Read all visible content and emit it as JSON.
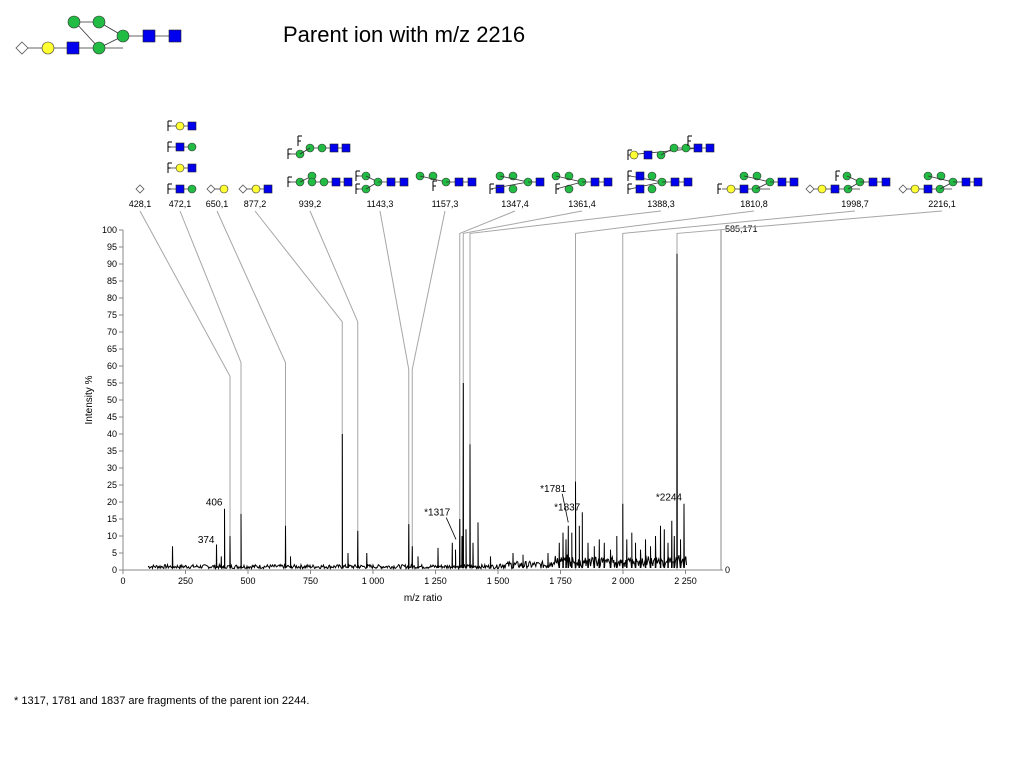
{
  "page": {
    "title": "Parent ion with m/z 2216",
    "footnote": "* 1317, 1781 and 1837 are fragments of the parent ion 2244."
  },
  "colors": {
    "galactose": "#ffff33",
    "mannose": "#22bb44",
    "glcnac": "#0000ee",
    "xylose": "#ffffff",
    "spectrum": "#000000",
    "connector": "#a6a6a6"
  },
  "icons": {
    "circle_yellow": "galactose-circle-icon",
    "circle_green": "mannose-circle-icon",
    "square_blue": "glcnac-square-icon",
    "diamond_white": "xylose-diamond-icon",
    "fucose_mark": "fucose-mark-icon"
  },
  "chart_data": {
    "type": "line",
    "title": "",
    "xlabel": "m/z ratio",
    "ylabel": "Intensity %",
    "xlim": [
      0,
      2400
    ],
    "ylim": [
      0,
      100
    ],
    "grid": false,
    "x_ticks": [
      {
        "value": 0,
        "label": "0"
      },
      {
        "value": 250,
        "label": "250"
      },
      {
        "value": 500,
        "label": "500"
      },
      {
        "value": 750,
        "label": "750"
      },
      {
        "value": 1000,
        "label": "1 000"
      },
      {
        "value": 1250,
        "label": "1 250"
      },
      {
        "value": 1500,
        "label": "1 500"
      },
      {
        "value": 1750,
        "label": "1 750"
      },
      {
        "value": 2000,
        "label": "2 000"
      },
      {
        "value": 2250,
        "label": "2 250"
      }
    ],
    "y_ticks": [
      0,
      5,
      10,
      15,
      20,
      25,
      30,
      35,
      40,
      45,
      50,
      55,
      60,
      65,
      70,
      75,
      80,
      85,
      90,
      95,
      100
    ],
    "right_axis": {
      "top_label": "585,171",
      "bottom_label": "0"
    },
    "peaks": [
      {
        "x": 198,
        "y": 7
      },
      {
        "x": 374,
        "y": 7.5
      },
      {
        "x": 393,
        "y": 4
      },
      {
        "x": 406,
        "y": 18
      },
      {
        "x": 428,
        "y": 10
      },
      {
        "x": 472,
        "y": 16.5
      },
      {
        "x": 650,
        "y": 13
      },
      {
        "x": 670,
        "y": 4
      },
      {
        "x": 877,
        "y": 40
      },
      {
        "x": 900,
        "y": 5
      },
      {
        "x": 939,
        "y": 11.5
      },
      {
        "x": 975,
        "y": 5
      },
      {
        "x": 1143,
        "y": 13.5
      },
      {
        "x": 1157,
        "y": 7
      },
      {
        "x": 1180,
        "y": 4
      },
      {
        "x": 1260,
        "y": 6.5
      },
      {
        "x": 1317,
        "y": 8
      },
      {
        "x": 1330,
        "y": 6
      },
      {
        "x": 1347,
        "y": 15
      },
      {
        "x": 1356,
        "y": 10
      },
      {
        "x": 1361,
        "y": 55
      },
      {
        "x": 1372,
        "y": 12
      },
      {
        "x": 1388,
        "y": 37
      },
      {
        "x": 1400,
        "y": 8
      },
      {
        "x": 1420,
        "y": 14
      },
      {
        "x": 1470,
        "y": 4
      },
      {
        "x": 1560,
        "y": 5
      },
      {
        "x": 1600,
        "y": 4.5
      },
      {
        "x": 1700,
        "y": 5
      },
      {
        "x": 1745,
        "y": 8
      },
      {
        "x": 1760,
        "y": 11
      },
      {
        "x": 1772,
        "y": 9
      },
      {
        "x": 1781,
        "y": 13
      },
      {
        "x": 1795,
        "y": 11
      },
      {
        "x": 1810,
        "y": 26
      },
      {
        "x": 1825,
        "y": 13
      },
      {
        "x": 1837,
        "y": 17
      },
      {
        "x": 1860,
        "y": 8
      },
      {
        "x": 1885,
        "y": 7
      },
      {
        "x": 1905,
        "y": 9
      },
      {
        "x": 1925,
        "y": 8
      },
      {
        "x": 1950,
        "y": 6
      },
      {
        "x": 1975,
        "y": 10
      },
      {
        "x": 1999,
        "y": 19.5
      },
      {
        "x": 2015,
        "y": 9
      },
      {
        "x": 2035,
        "y": 11
      },
      {
        "x": 2050,
        "y": 8
      },
      {
        "x": 2070,
        "y": 6
      },
      {
        "x": 2090,
        "y": 9
      },
      {
        "x": 2110,
        "y": 7
      },
      {
        "x": 2130,
        "y": 10
      },
      {
        "x": 2150,
        "y": 13
      },
      {
        "x": 2165,
        "y": 12
      },
      {
        "x": 2180,
        "y": 8
      },
      {
        "x": 2195,
        "y": 14.5
      },
      {
        "x": 2205,
        "y": 10
      },
      {
        "x": 2216,
        "y": 93
      },
      {
        "x": 2230,
        "y": 9
      },
      {
        "x": 2244,
        "y": 19.5
      }
    ],
    "annotations": [
      {
        "text": "374",
        "x": 374,
        "y": 8
      },
      {
        "text": "406",
        "x": 406,
        "y": 19
      },
      {
        "text": "*1317",
        "x": 1317,
        "y": 16,
        "leader_to": {
          "x": 1332,
          "y": 9
        }
      },
      {
        "text": "*1781",
        "x": 1781,
        "y": 23,
        "leader_to": {
          "x": 1781,
          "y": 14
        }
      },
      {
        "text": "*1837",
        "x": 1837,
        "y": 17.5
      },
      {
        "text": "*2244",
        "x": 2244,
        "y": 20.5
      }
    ],
    "structure_labels": [
      {
        "label": "428,1",
        "target": 428,
        "elbow": 57
      },
      {
        "label": "472,1",
        "target": 472,
        "elbow": 61
      },
      {
        "label": "650,1",
        "target": 650,
        "elbow": 61
      },
      {
        "label": "877,2",
        "target": 877,
        "elbow": 73
      },
      {
        "label": "939,2",
        "target": 939,
        "elbow": 73
      },
      {
        "label": "1143,3",
        "target": 1143,
        "elbow": 59
      },
      {
        "label": "1157,3",
        "target": 1157,
        "elbow": 59
      },
      {
        "label": "1347,4",
        "target": 1347,
        "elbow": 99
      },
      {
        "label": "1361,4",
        "target": 1361,
        "elbow": 99
      },
      {
        "label": "1388,3",
        "target": 1388,
        "elbow": 99
      },
      {
        "label": "1810,8",
        "target": 1810,
        "elbow": 99
      },
      {
        "label": "1998,7",
        "target": 1999,
        "elbow": 99
      },
      {
        "label": "2216,1",
        "target": 2216,
        "elbow": 99
      }
    ]
  }
}
